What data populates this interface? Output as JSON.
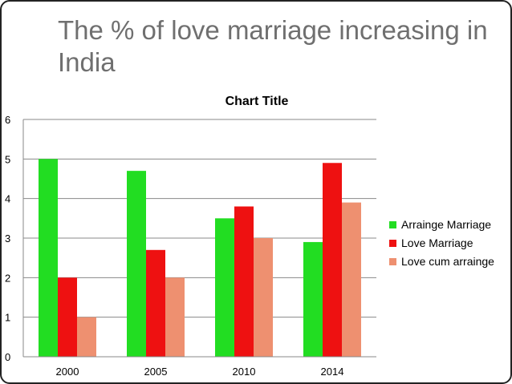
{
  "slide": {
    "title": "The % of love marriage increasing in India"
  },
  "chart_data": {
    "type": "bar",
    "title": "Chart Title",
    "categories": [
      "2000",
      "2005",
      "2010",
      "2014"
    ],
    "series": [
      {
        "name": "Arrainge Marriage",
        "values": [
          5.0,
          4.7,
          3.5,
          2.9
        ],
        "color": "#22dd22"
      },
      {
        "name": "Love Marriage",
        "values": [
          2.0,
          2.7,
          3.8,
          4.9
        ],
        "color": "#ee1111"
      },
      {
        "name": "Love cum arrainge",
        "values": [
          1.0,
          2.0,
          3.0,
          3.9
        ],
        "color": "#ee9070"
      }
    ],
    "yticks": [
      "0",
      "1",
      "2",
      "3",
      "4",
      "5",
      "6"
    ],
    "ylim": [
      0,
      6
    ],
    "grid": true,
    "legend": "right",
    "xlabel": "",
    "ylabel": ""
  }
}
